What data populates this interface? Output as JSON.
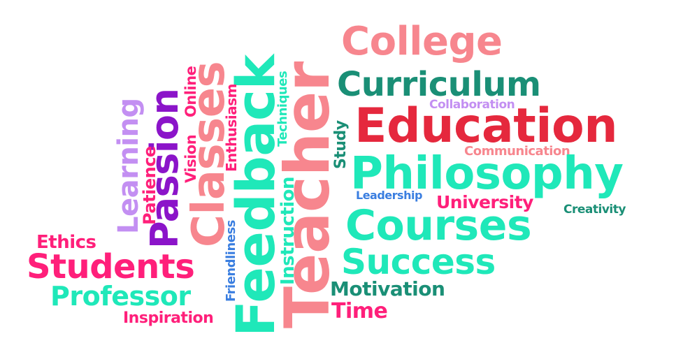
{
  "colors": {
    "pink": "#ff1f7a",
    "salmon": "#f7868e",
    "red": "#e5283d",
    "teal_light": "#1fe8b9",
    "teal_dark": "#1a8f76",
    "purple": "#8b14c9",
    "lavender": "#c38ff2",
    "blue": "#3a7ee0"
  },
  "words": {
    "college": "College",
    "curriculum": "Curriculum",
    "collaboration": "Collaboration",
    "education": "Education",
    "communication": "Communication",
    "philosophy": "Philosophy",
    "leadership": "Leadership",
    "university": "University",
    "creativity": "Creativity",
    "courses": "Courses",
    "success": "Success",
    "motivation": "Motivation",
    "time": "Time",
    "teacher": "Teacher",
    "techniques": "Techniques",
    "study": "Study",
    "instruction": "Instruction",
    "feedback": "Feedback",
    "enthusiasm": "Enthusiasm",
    "friendliness": "Friendliness",
    "classes": "Classes",
    "online": "Online",
    "vision": "Vision",
    "passion": "Passion",
    "patience": "Patience",
    "learning": "Learning",
    "ethics": "Ethics",
    "students": "Students",
    "professor": "Professor",
    "inspiration": "Inspiration"
  }
}
